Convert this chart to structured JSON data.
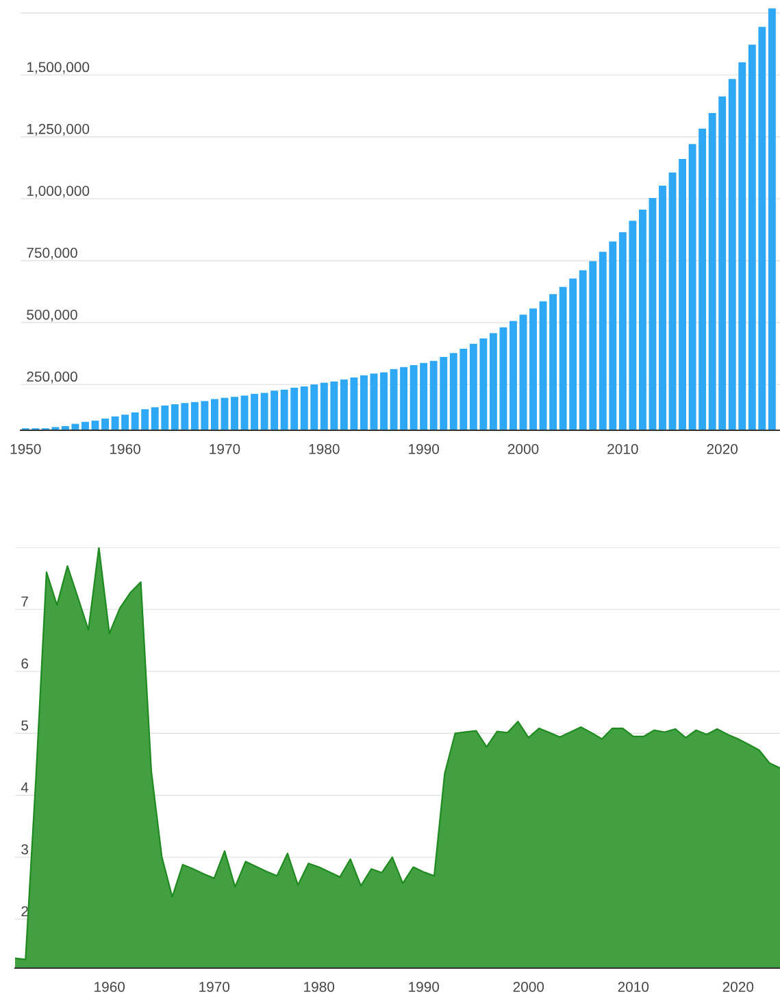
{
  "chart_data": [
    {
      "type": "bar",
      "x": [
        1950,
        1951,
        1952,
        1953,
        1954,
        1955,
        1956,
        1957,
        1958,
        1959,
        1960,
        1961,
        1962,
        1963,
        1964,
        1965,
        1966,
        1967,
        1968,
        1969,
        1970,
        1971,
        1972,
        1973,
        1974,
        1975,
        1976,
        1977,
        1978,
        1979,
        1980,
        1981,
        1982,
        1983,
        1984,
        1985,
        1986,
        1987,
        1988,
        1989,
        1990,
        1991,
        1992,
        1993,
        1994,
        1995,
        1996,
        1997,
        1998,
        1999,
        2000,
        2001,
        2002,
        2003,
        2004,
        2005,
        2006,
        2007,
        2008,
        2009,
        2010,
        2011,
        2012,
        2013,
        2014,
        2015,
        2016,
        2017,
        2018,
        2019,
        2020,
        2021,
        2022,
        2023,
        2024,
        2025
      ],
      "series": [
        {
          "color": "#2ea8f4",
          "values": [
            73000,
            73000,
            73000,
            78000,
            82000,
            91000,
            99000,
            104000,
            112000,
            121000,
            128000,
            137000,
            150000,
            158000,
            165000,
            170000,
            175000,
            179000,
            183000,
            191000,
            196000,
            200000,
            205000,
            212000,
            216000,
            225000,
            229000,
            237000,
            242000,
            250000,
            257000,
            262000,
            270000,
            278000,
            287000,
            294000,
            299000,
            312000,
            320000,
            328000,
            337000,
            345000,
            361000,
            377000,
            394000,
            414000,
            436000,
            457000,
            481000,
            506000,
            532000,
            557000,
            586000,
            615000,
            644000,
            678000,
            711000,
            748000,
            786000,
            827000,
            865000,
            911000,
            956000,
            1003000,
            1053000,
            1106000,
            1161000,
            1221000,
            1283000,
            1346000,
            1413000,
            1484000,
            1551000,
            1622000,
            1694000,
            1769000
          ]
        }
      ],
      "xlim": [
        1949.5,
        2025.8
      ],
      "ylim": [
        65000,
        1775000
      ],
      "xticks": [
        1950,
        1960,
        1970,
        1980,
        1990,
        2000,
        2010,
        2020
      ],
      "yticks": [
        {
          "value": 250000,
          "label": "250,000"
        },
        {
          "value": 500000,
          "label": "500,000"
        },
        {
          "value": 750000,
          "label": "750,000"
        },
        {
          "value": 1000000,
          "label": "1,000,000"
        },
        {
          "value": 1250000,
          "label": "1,250,000"
        },
        {
          "value": 1500000,
          "label": "1,500,000"
        },
        {
          "value": 1750000,
          "label": null
        }
      ],
      "grid": "y"
    },
    {
      "type": "area",
      "x": [
        1951,
        1952,
        1953,
        1954,
        1955,
        1956,
        1957,
        1958,
        1959,
        1960,
        1961,
        1962,
        1963,
        1964,
        1965,
        1966,
        1967,
        1968,
        1969,
        1970,
        1971,
        1972,
        1973,
        1974,
        1975,
        1976,
        1977,
        1978,
        1979,
        1980,
        1981,
        1982,
        1983,
        1984,
        1985,
        1986,
        1987,
        1988,
        1989,
        1990,
        1991,
        1992,
        1993,
        1994,
        1995,
        1996,
        1997,
        1998,
        1999,
        2000,
        2001,
        2002,
        2003,
        2004,
        2005,
        2006,
        2007,
        2008,
        2009,
        2010,
        2011,
        2012,
        2013,
        2014,
        2015,
        2016,
        2017,
        2018,
        2019,
        2020,
        2021,
        2022,
        2023,
        2024
      ],
      "series": [
        {
          "color": "#43a042",
          "values": [
            1.37,
            1.35,
            4.3,
            7.6,
            7.07,
            7.7,
            7.19,
            6.67,
            8.0,
            6.61,
            7.02,
            7.27,
            7.44,
            4.39,
            3.01,
            2.36,
            2.88,
            2.81,
            2.73,
            2.66,
            3.1,
            2.52,
            2.93,
            2.85,
            2.77,
            2.7,
            3.06,
            2.55,
            2.9,
            2.84,
            2.76,
            2.68,
            2.97,
            2.54,
            2.81,
            2.75,
            3.0,
            2.58,
            2.84,
            2.76,
            2.7,
            4.35,
            5.0,
            5.02,
            5.04,
            4.78,
            5.03,
            5.01,
            5.19,
            4.93,
            5.08,
            5.01,
            4.94,
            5.02,
            5.1,
            5.01,
            4.91,
            5.08,
            5.08,
            4.95,
            4.95,
            5.05,
            5.02,
            5.07,
            4.93,
            5.05,
            4.98,
            5.07,
            4.98,
            4.91,
            4.82,
            4.73,
            4.52,
            4.44
          ]
        }
      ],
      "xlim": [
        1951,
        2024
      ],
      "ylim": [
        1.21,
        8
      ],
      "xticks": [
        1960,
        1970,
        1980,
        1990,
        2000,
        2010,
        2020
      ],
      "yticks": [
        2,
        3,
        4,
        5,
        6,
        7,
        {
          "value": 8,
          "label": null
        }
      ],
      "grid": "y"
    }
  ]
}
